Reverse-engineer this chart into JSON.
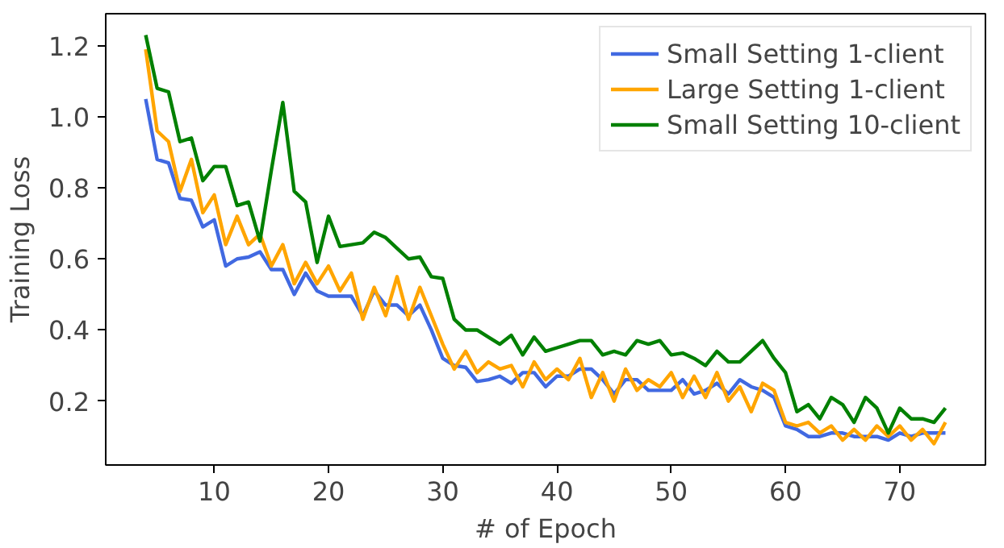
{
  "chart_data": {
    "type": "line",
    "xlabel": "# of Epoch",
    "ylabel": "Training Loss",
    "x": [
      4,
      5,
      6,
      7,
      8,
      9,
      10,
      11,
      12,
      13,
      14,
      15,
      16,
      17,
      18,
      19,
      20,
      21,
      22,
      23,
      24,
      25,
      26,
      27,
      28,
      29,
      30,
      31,
      32,
      33,
      34,
      35,
      36,
      37,
      38,
      39,
      40,
      41,
      42,
      43,
      44,
      45,
      46,
      47,
      48,
      49,
      50,
      51,
      52,
      53,
      54,
      55,
      56,
      57,
      58,
      59,
      60,
      61,
      62,
      63,
      64,
      65,
      66,
      67,
      68,
      69,
      70,
      71,
      72,
      73,
      74
    ],
    "series": [
      {
        "name": "Small Setting 1-client",
        "color": "#4169e1",
        "values": [
          1.05,
          0.88,
          0.87,
          0.77,
          0.765,
          0.69,
          0.71,
          0.58,
          0.6,
          0.605,
          0.62,
          0.57,
          0.57,
          0.5,
          0.56,
          0.51,
          0.495,
          0.495,
          0.495,
          0.44,
          0.51,
          0.47,
          0.47,
          0.44,
          0.47,
          0.4,
          0.32,
          0.3,
          0.295,
          0.255,
          0.26,
          0.27,
          0.25,
          0.28,
          0.28,
          0.24,
          0.27,
          0.27,
          0.29,
          0.29,
          0.26,
          0.22,
          0.26,
          0.26,
          0.23,
          0.23,
          0.23,
          0.26,
          0.22,
          0.23,
          0.25,
          0.22,
          0.26,
          0.24,
          0.23,
          0.21,
          0.13,
          0.12,
          0.1,
          0.1,
          0.11,
          0.11,
          0.1,
          0.1,
          0.1,
          0.09,
          0.11,
          0.1,
          0.11,
          0.11,
          0.11
        ]
      },
      {
        "name": "Large Setting 1-client",
        "color": "#ffa500",
        "values": [
          1.19,
          0.96,
          0.93,
          0.79,
          0.88,
          0.73,
          0.78,
          0.64,
          0.72,
          0.64,
          0.67,
          0.58,
          0.64,
          0.53,
          0.59,
          0.53,
          0.58,
          0.51,
          0.56,
          0.43,
          0.52,
          0.44,
          0.55,
          0.43,
          0.52,
          0.44,
          0.36,
          0.29,
          0.34,
          0.28,
          0.31,
          0.29,
          0.3,
          0.24,
          0.31,
          0.26,
          0.29,
          0.26,
          0.32,
          0.21,
          0.28,
          0.2,
          0.29,
          0.23,
          0.26,
          0.24,
          0.28,
          0.21,
          0.27,
          0.21,
          0.28,
          0.2,
          0.24,
          0.17,
          0.25,
          0.23,
          0.14,
          0.13,
          0.14,
          0.11,
          0.13,
          0.09,
          0.12,
          0.09,
          0.13,
          0.1,
          0.13,
          0.09,
          0.12,
          0.08,
          0.14
        ]
      },
      {
        "name": "Small Setting 10-client",
        "color": "#008000",
        "values": [
          1.23,
          1.08,
          1.07,
          0.93,
          0.94,
          0.82,
          0.86,
          0.86,
          0.75,
          0.76,
          0.65,
          0.85,
          1.04,
          0.79,
          0.76,
          0.59,
          0.72,
          0.635,
          0.64,
          0.645,
          0.675,
          0.66,
          0.63,
          0.6,
          0.605,
          0.55,
          0.545,
          0.43,
          0.4,
          0.4,
          0.38,
          0.36,
          0.385,
          0.33,
          0.38,
          0.34,
          0.35,
          0.36,
          0.37,
          0.37,
          0.33,
          0.34,
          0.33,
          0.37,
          0.36,
          0.37,
          0.33,
          0.335,
          0.32,
          0.3,
          0.34,
          0.31,
          0.31,
          0.34,
          0.37,
          0.32,
          0.28,
          0.17,
          0.19,
          0.15,
          0.21,
          0.19,
          0.14,
          0.21,
          0.18,
          0.11,
          0.18,
          0.15,
          0.15,
          0.14,
          0.18
        ]
      }
    ],
    "xlim": [
      0.5,
      77.5
    ],
    "ylim": [
      0.02,
      1.29
    ],
    "xticks": [
      10,
      20,
      30,
      40,
      50,
      60,
      70
    ],
    "yticks": [
      0.2,
      0.4,
      0.6,
      0.8,
      {
        "value": 1,
        "label": "1.0"
      },
      1.2
    ],
    "grid": false,
    "legend": "top right",
    "marker": "none",
    "line_style": "solid"
  }
}
